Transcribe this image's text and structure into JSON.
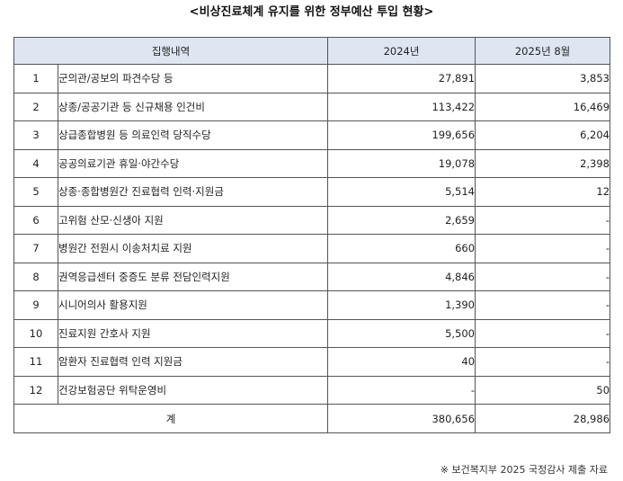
{
  "title": "<비상진료체계 유지를 위한 정부예산 투입 현황>",
  "table": {
    "headers": {
      "item": "집행내역",
      "y2024": "2024년",
      "y2025": "2025년 8월"
    },
    "rows": [
      {
        "no": "1",
        "item": "군의관/공보의 파견수당 등",
        "y2024": "27,891",
        "y2025": "3,853"
      },
      {
        "no": "2",
        "item": "상종/공공기관 등 신규채용 인건비",
        "y2024": "113,422",
        "y2025": "16,469"
      },
      {
        "no": "3",
        "item": "상급종합병원 등 의료인력 당직수당",
        "y2024": "199,656",
        "y2025": "6,204"
      },
      {
        "no": "4",
        "item": "공공의료기관 휴일·야간수당",
        "y2024": "19,078",
        "y2025": "2,398"
      },
      {
        "no": "5",
        "item": "상종·종합병원간 진료협력 인력·지원금",
        "y2024": "5,514",
        "y2025": "12"
      },
      {
        "no": "6",
        "item": "고위험 산모·신생아 지원",
        "y2024": "2,659",
        "y2025": "-"
      },
      {
        "no": "7",
        "item": "병원간 전원시 이송처치료 지원",
        "y2024": "660",
        "y2025": "-"
      },
      {
        "no": "8",
        "item": "권역응급센터 중증도 분류 전담인력지원",
        "y2024": "4,846",
        "y2025": "-"
      },
      {
        "no": "9",
        "item": "시니어의사 활용지원",
        "y2024": "1,390",
        "y2025": "-"
      },
      {
        "no": "10",
        "item": "진료지원 간호사 지원",
        "y2024": "5,500",
        "y2025": "-"
      },
      {
        "no": "11",
        "item": "암환자 진료협력 인력 지원금",
        "y2024": "40",
        "y2025": "-"
      },
      {
        "no": "12",
        "item": "건강보험공단 위탁운영비",
        "y2024": "-",
        "y2025": "50"
      }
    ],
    "total": {
      "label": "계",
      "y2024": "380,656",
      "y2025": "28,986"
    }
  },
  "source": "※ 보건복지부 2025 국정감사 제출 자료"
}
